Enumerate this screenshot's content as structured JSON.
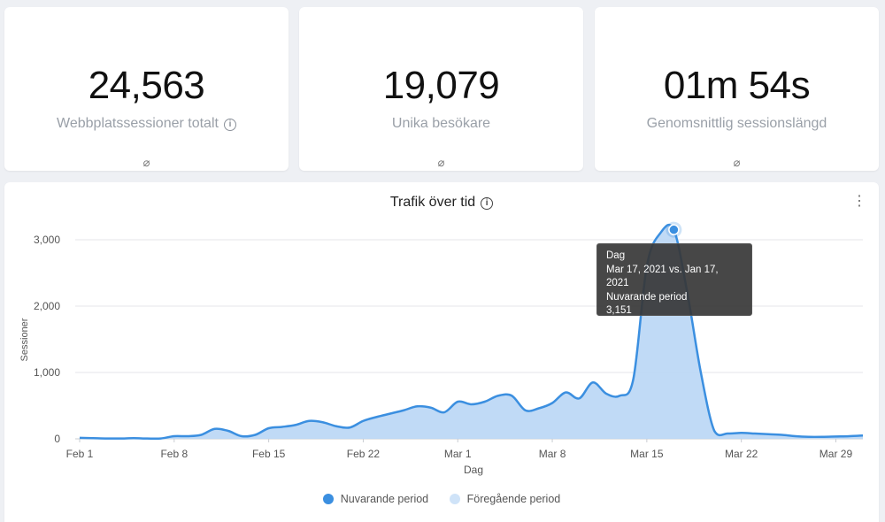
{
  "stats": [
    {
      "value": "24,563",
      "label": "Webbplatssessioner totalt",
      "empty": "⌀"
    },
    {
      "value": "19,079",
      "label": "Unika besökare",
      "empty": "⌀"
    },
    {
      "value": "01m 54s",
      "label": "Genomsnittlig sessionslängd",
      "empty": "⌀"
    }
  ],
  "chart": {
    "title": "Trafik över tid",
    "menu_icon": "kebab-menu-icon"
  },
  "tooltip": {
    "line1": "Dag",
    "line2": "Mar 17, 2021 vs. Jan 17, 2021",
    "line3": "Nuvarande period",
    "line4": "3,151"
  },
  "legend": {
    "current": "Nuvarande period",
    "previous": "Föregående period"
  },
  "colors": {
    "current": "#3b8fe0",
    "previous": "#cfe3f8",
    "area_fill": "#b9d6f5"
  },
  "chart_data": {
    "type": "area",
    "title": "Trafik över tid",
    "xlabel": "Dag",
    "ylabel": "Sessioner",
    "ylim": [
      0,
      3000
    ],
    "yticks": [
      "0",
      "1,000",
      "2,000",
      "3,000"
    ],
    "yticks_values": [
      0,
      1000,
      2000,
      3000
    ],
    "xticks": [
      "Feb 1",
      "Feb 8",
      "Feb 15",
      "Feb 22",
      "Mar 1",
      "Mar 8",
      "Mar 15",
      "Mar 22",
      "Mar 29"
    ],
    "grid": true,
    "legend_position": "bottom",
    "series": [
      {
        "name": "Nuvarande period",
        "x": [
          "Feb 1",
          "Feb 2",
          "Feb 3",
          "Feb 4",
          "Feb 5",
          "Feb 6",
          "Feb 7",
          "Feb 8",
          "Feb 9",
          "Feb 10",
          "Feb 11",
          "Feb 12",
          "Feb 13",
          "Feb 14",
          "Feb 15",
          "Feb 16",
          "Feb 17",
          "Feb 18",
          "Feb 19",
          "Feb 20",
          "Feb 21",
          "Feb 22",
          "Feb 23",
          "Feb 24",
          "Feb 25",
          "Feb 26",
          "Feb 27",
          "Feb 28",
          "Mar 1",
          "Mar 2",
          "Mar 3",
          "Mar 4",
          "Mar 5",
          "Mar 6",
          "Mar 7",
          "Mar 8",
          "Mar 9",
          "Mar 10",
          "Mar 11",
          "Mar 12",
          "Mar 13",
          "Mar 14",
          "Mar 15",
          "Mar 16",
          "Mar 17",
          "Mar 18",
          "Mar 19",
          "Mar 20",
          "Mar 21",
          "Mar 22",
          "Mar 23",
          "Mar 24",
          "Mar 25",
          "Mar 26",
          "Mar 27",
          "Mar 28",
          "Mar 29",
          "Mar 30",
          "Mar 31"
        ],
        "values": [
          15,
          10,
          5,
          5,
          10,
          5,
          5,
          40,
          40,
          60,
          150,
          120,
          40,
          60,
          160,
          180,
          210,
          270,
          250,
          190,
          170,
          270,
          330,
          380,
          430,
          490,
          470,
          400,
          560,
          520,
          560,
          650,
          650,
          430,
          460,
          540,
          700,
          610,
          850,
          680,
          650,
          900,
          2600,
          3100,
          3151,
          2200,
          1000,
          120,
          80,
          90,
          80,
          70,
          60,
          40,
          30,
          30,
          35,
          40,
          50
        ],
        "color": "#3b8fe0"
      }
    ]
  }
}
